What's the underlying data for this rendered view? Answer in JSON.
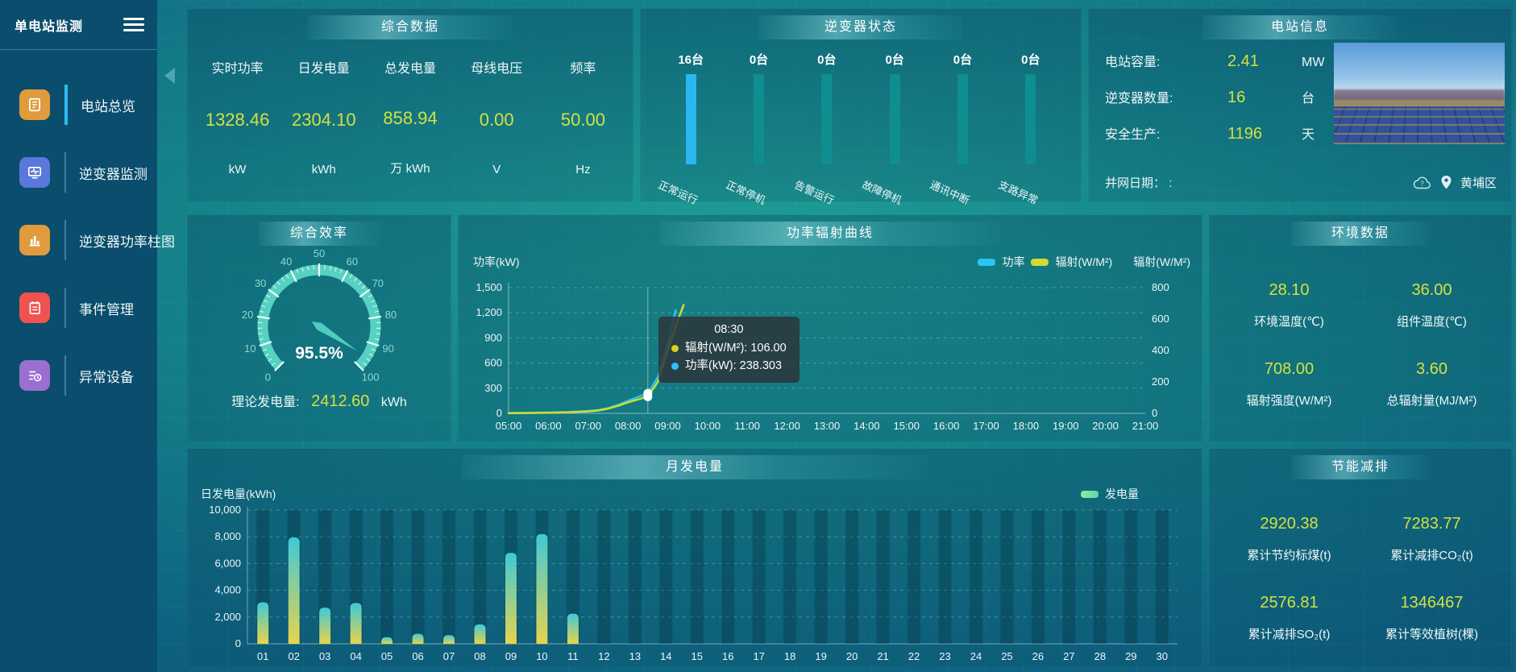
{
  "app": {
    "title": "单电站监测"
  },
  "sidebar": {
    "items": [
      {
        "label": "电站总览",
        "icon": "report-icon",
        "color": "#e09b3d",
        "active": true
      },
      {
        "label": "逆变器监测",
        "icon": "inverter-monitor-icon",
        "color": "#5a78dc",
        "active": false
      },
      {
        "label": "逆变器功率柱图",
        "icon": "bar-chart-icon",
        "color": "#e09b3d",
        "active": false
      },
      {
        "label": "事件管理",
        "icon": "event-icon",
        "color": "#ef5350",
        "active": false
      },
      {
        "label": "异常设备",
        "icon": "abnormal-device-icon",
        "color": "#9a6fd0",
        "active": false
      }
    ]
  },
  "summary": {
    "title": "综合数据",
    "metrics": [
      {
        "label": "实时功率",
        "value": "1328.46",
        "unit": "kW"
      },
      {
        "label": "日发电量",
        "value": "2304.10",
        "unit": "kWh"
      },
      {
        "label": "总发电量",
        "value": "858.94",
        "unit": "万 kWh"
      },
      {
        "label": "母线电压",
        "value": "0.00",
        "unit": "V"
      },
      {
        "label": "频率",
        "value": "50.00",
        "unit": "Hz"
      }
    ]
  },
  "inverter_status": {
    "title": "逆变器状态",
    "bars": [
      {
        "count": "16台",
        "label": "正常运行",
        "color": "#2ab7f0"
      },
      {
        "count": "0台",
        "label": "正常停机",
        "color": "#0f8e91"
      },
      {
        "count": "0台",
        "label": "告警运行",
        "color": "#0f8e91"
      },
      {
        "count": "0台",
        "label": "故障停机",
        "color": "#0f8e91"
      },
      {
        "count": "0台",
        "label": "通讯中断",
        "color": "#0f8e91"
      },
      {
        "count": "0台",
        "label": "支路异常",
        "color": "#0f8e91"
      }
    ]
  },
  "station_info": {
    "title": "电站信息",
    "rows": [
      {
        "label": "电站容量:",
        "value": "2.41",
        "unit": "MW"
      },
      {
        "label": "逆变器数量:",
        "value": "16",
        "unit": "台"
      },
      {
        "label": "安全生产:",
        "value": "1196",
        "unit": "天"
      }
    ],
    "grid_date_label": "并网日期：",
    "grid_date_value": ":",
    "location": "黄埔区"
  },
  "efficiency": {
    "title": "综合效率",
    "gauge_display": "95.5%",
    "theory_label": "理论发电量:",
    "theory_value": "2412.60",
    "theory_unit": "kWh"
  },
  "power_curve": {
    "title": "功率辐射曲线",
    "tooltip": {
      "time": "08:30",
      "items": [
        {
          "label": "辐射(W/M²):",
          "value": "106.00",
          "color": "#d4d21f"
        },
        {
          "label": "功率(kW):",
          "value": "238.303",
          "color": "#29c5f6"
        }
      ]
    }
  },
  "environment": {
    "title": "环境数据",
    "metrics": [
      {
        "value": "28.10",
        "label": "环境温度(℃)"
      },
      {
        "value": "36.00",
        "label": "组件温度(℃)"
      },
      {
        "value": "708.00",
        "label": "辐射强度(W/M²)"
      },
      {
        "value": "3.60",
        "label": "总辐射量(MJ/M²)"
      }
    ]
  },
  "monthly": {
    "title": "月发电量"
  },
  "saving": {
    "title": "节能减排",
    "metrics": [
      {
        "value": "2920.38",
        "label": "累计节约标煤(t)"
      },
      {
        "value": "7283.77",
        "label": "累计减排CO₂(t)"
      },
      {
        "value": "2576.81",
        "label": "累计减排SO₂(t)"
      },
      {
        "value": "1346467",
        "label": "累计等效植树(棵)"
      }
    ]
  },
  "chart_data": [
    {
      "id": "efficiency-gauge",
      "type": "gauge",
      "title": "综合效率",
      "min": 0,
      "max": 100,
      "value": 95.5,
      "display": "95.5%",
      "major_tick_interval": 10,
      "unit": "%"
    },
    {
      "id": "power-radiation-curve",
      "type": "line",
      "title": "功率辐射曲线",
      "ylabel_left": "功率(kW)",
      "ylabel_right": "辐射(W/M²)",
      "ylim_left": [
        0,
        1500
      ],
      "ylim_right": [
        0,
        800
      ],
      "yticks_left": [
        "0",
        "300",
        "600",
        "900",
        "1,200",
        "1,500"
      ],
      "yticks_right": [
        "0",
        "200",
        "400",
        "600",
        "800"
      ],
      "xlim": [
        5,
        21
      ],
      "x_ticks": [
        "05:00",
        "06:00",
        "07:00",
        "08:00",
        "09:00",
        "10:00",
        "11:00",
        "12:00",
        "13:00",
        "14:00",
        "15:00",
        "16:00",
        "17:00",
        "18:00",
        "19:00",
        "20:00",
        "21:00"
      ],
      "legend": [
        {
          "name": "功率",
          "color": "#29c5f6"
        },
        {
          "name": "辐射(W/M²)",
          "color": "#cfdd2e"
        }
      ],
      "series": [
        {
          "name": "功率",
          "axis": "left",
          "color": "#29c5f6",
          "x": [
            5,
            5.5,
            6,
            6.5,
            7,
            7.25,
            7.5,
            7.75,
            8,
            8.25,
            8.5,
            8.75,
            9,
            9.2
          ],
          "values": [
            4,
            6,
            10,
            16,
            28,
            40,
            62,
            100,
            150,
            195,
            238.3,
            430,
            820,
            1230
          ]
        },
        {
          "name": "辐射(W/M²)",
          "axis": "right",
          "color": "#cfdd2e",
          "x": [
            5,
            5.5,
            6,
            6.5,
            7,
            7.25,
            7.5,
            7.75,
            8,
            8.25,
            8.5,
            8.75,
            9,
            9.25,
            9.4
          ],
          "values": [
            1,
            2,
            4,
            7,
            12,
            18,
            30,
            48,
            70,
            88,
            106,
            200,
            400,
            590,
            690
          ]
        }
      ],
      "hover": {
        "x": 8.5,
        "time": "08:30",
        "power_kw": 238.303,
        "radiation_wm2": 106.0
      }
    },
    {
      "id": "monthly-generation",
      "type": "bar",
      "title": "月发电量",
      "ylabel": "日发电量(kWh)",
      "ylim": [
        0,
        10000
      ],
      "yticks": [
        "0",
        "2,000",
        "4,000",
        "6,000",
        "8,000",
        "10,000"
      ],
      "legend": [
        {
          "name": "发电量",
          "color": "#82e5a4"
        }
      ],
      "categories": [
        "01",
        "02",
        "03",
        "04",
        "05",
        "06",
        "07",
        "08",
        "09",
        "10",
        "11",
        "12",
        "13",
        "14",
        "15",
        "16",
        "17",
        "18",
        "19",
        "20",
        "21",
        "22",
        "23",
        "24",
        "25",
        "26",
        "27",
        "28",
        "29",
        "30"
      ],
      "values": [
        3100,
        7950,
        2700,
        3050,
        500,
        750,
        650,
        1450,
        6800,
        8200,
        2250,
        0,
        0,
        0,
        0,
        0,
        0,
        0,
        0,
        0,
        0,
        0,
        0,
        0,
        0,
        0,
        0,
        0,
        0,
        0
      ]
    },
    {
      "id": "inverter-status-bars",
      "type": "bar",
      "categories": [
        "正常运行",
        "正常停机",
        "告警运行",
        "故障停机",
        "通讯中断",
        "支路异常"
      ],
      "values": [
        16,
        0,
        0,
        0,
        0,
        0
      ],
      "unit": "台"
    }
  ]
}
